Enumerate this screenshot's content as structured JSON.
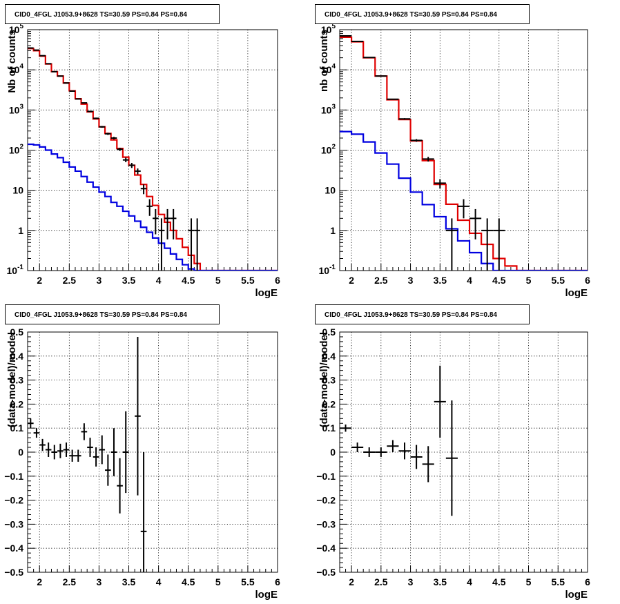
{
  "chart_data": [
    {
      "type": "histogram",
      "panel": "top-left",
      "title": "CID0_4FGL J1053.9+8628 TS=30.59 PS=0.84 PS=0.84",
      "xlabel": "logE",
      "ylabel": "Nb of counts",
      "yscale": "log",
      "xlim": [
        1.8,
        6.0
      ],
      "ylim": [
        0.1,
        100000
      ],
      "grid": true,
      "xticks": [
        "2",
        "2.5",
        "3",
        "3.5",
        "4",
        "4.5",
        "5",
        "5.5",
        "6"
      ],
      "yticks": [
        "10^-1",
        "1",
        "10",
        "10^2",
        "10^3",
        "10^4",
        "10^5"
      ],
      "series": [
        {
          "style": "step",
          "color": "#e00000",
          "bin_edges": [
            1.8,
            1.9,
            2.0,
            2.1,
            2.2,
            2.3,
            2.4,
            2.5,
            2.6,
            2.7,
            2.8,
            2.9,
            3.0,
            3.1,
            3.2,
            3.3,
            3.4,
            3.5,
            3.6,
            3.7,
            3.8,
            3.9,
            4.0,
            4.1,
            4.2,
            4.3,
            4.4,
            4.5,
            4.6,
            4.7,
            4.8,
            4.9,
            5.0,
            5.1,
            5.2,
            5.3,
            5.4,
            5.5,
            5.6,
            5.7,
            5.8,
            5.9,
            6.0
          ],
          "values": [
            34000,
            30000,
            22000,
            14000,
            9000,
            7000,
            4700,
            3000,
            1900,
            1400,
            900,
            600,
            380,
            260,
            180,
            110,
            67,
            42,
            24,
            14,
            7,
            4.2,
            2.5,
            1.6,
            1.0,
            0.62,
            0.38,
            0.24,
            0.15,
            0.1,
            0.1,
            0.1,
            0.1,
            0.1,
            0.1,
            0.1,
            0.1,
            0.1,
            0.1,
            0.1,
            0.1,
            0.1
          ]
        },
        {
          "style": "step",
          "color": "#0000e0",
          "bin_edges": [
            1.8,
            1.9,
            2.0,
            2.1,
            2.2,
            2.3,
            2.4,
            2.5,
            2.6,
            2.7,
            2.8,
            2.9,
            3.0,
            3.1,
            3.2,
            3.3,
            3.4,
            3.5,
            3.6,
            3.7,
            3.8,
            3.9,
            4.0,
            4.1,
            4.2,
            4.3,
            4.4,
            4.5,
            4.6,
            4.7,
            4.8,
            4.9,
            5.0,
            5.1,
            5.2,
            5.3,
            5.4,
            5.5,
            5.6,
            5.7,
            5.8,
            5.9,
            6.0
          ],
          "values": [
            140,
            135,
            120,
            100,
            80,
            65,
            50,
            38,
            30,
            22,
            16,
            12,
            9,
            7,
            5,
            4,
            3,
            2.3,
            1.7,
            1.2,
            0.9,
            0.65,
            0.48,
            0.36,
            0.26,
            0.19,
            0.14,
            0.11,
            0.1,
            0.1,
            0.1,
            0.1,
            0.1,
            0.1,
            0.1,
            0.1,
            0.1,
            0.1,
            0.1,
            0.1,
            0.1,
            0.1
          ]
        },
        {
          "style": "errorbar",
          "color": "#000000",
          "points": [
            {
              "x": 1.85,
              "y": 35000,
              "xerr": 0.05,
              "ylo": 34800,
              "yhi": 35200
            },
            {
              "x": 1.95,
              "y": 31000,
              "xerr": 0.05,
              "ylo": 30800,
              "yhi": 31200
            },
            {
              "x": 2.05,
              "y": 22500,
              "xerr": 0.05,
              "ylo": 22300,
              "yhi": 22700
            },
            {
              "x": 2.15,
              "y": 14200,
              "xerr": 0.05,
              "ylo": 14100,
              "yhi": 14300
            },
            {
              "x": 2.25,
              "y": 9000,
              "xerr": 0.05,
              "ylo": 8900,
              "yhi": 9100
            },
            {
              "x": 2.35,
              "y": 7000,
              "xerr": 0.05,
              "ylo": 6920,
              "yhi": 7080
            },
            {
              "x": 2.45,
              "y": 4700,
              "xerr": 0.05,
              "ylo": 4630,
              "yhi": 4770
            },
            {
              "x": 2.55,
              "y": 2950,
              "xerr": 0.05,
              "ylo": 2900,
              "yhi": 3000
            },
            {
              "x": 2.65,
              "y": 1880,
              "xerr": 0.05,
              "ylo": 1840,
              "yhi": 1920
            },
            {
              "x": 2.75,
              "y": 1500,
              "xerr": 0.05,
              "ylo": 1460,
              "yhi": 1540
            },
            {
              "x": 2.85,
              "y": 920,
              "xerr": 0.05,
              "ylo": 890,
              "yhi": 950
            },
            {
              "x": 2.95,
              "y": 620,
              "xerr": 0.05,
              "ylo": 595,
              "yhi": 645
            },
            {
              "x": 3.05,
              "y": 380,
              "xerr": 0.05,
              "ylo": 361,
              "yhi": 399
            },
            {
              "x": 3.15,
              "y": 255,
              "xerr": 0.05,
              "ylo": 239,
              "yhi": 271
            },
            {
              "x": 3.25,
              "y": 200,
              "xerr": 0.05,
              "ylo": 186,
              "yhi": 214
            },
            {
              "x": 3.35,
              "y": 105,
              "xerr": 0.05,
              "ylo": 95,
              "yhi": 115
            },
            {
              "x": 3.45,
              "y": 57,
              "xerr": 0.05,
              "ylo": 50,
              "yhi": 65
            },
            {
              "x": 3.55,
              "y": 42,
              "xerr": 0.05,
              "ylo": 36,
              "yhi": 48
            },
            {
              "x": 3.65,
              "y": 30,
              "xerr": 0.05,
              "ylo": 25,
              "yhi": 35
            },
            {
              "x": 3.75,
              "y": 11,
              "xerr": 0.05,
              "ylo": 8,
              "yhi": 14
            },
            {
              "x": 3.85,
              "y": 4,
              "xerr": 0.05,
              "ylo": 2.3,
              "yhi": 6
            },
            {
              "x": 3.95,
              "y": 2,
              "xerr": 0.05,
              "ylo": 0.8,
              "yhi": 3.4
            },
            {
              "x": 4.05,
              "y": 1,
              "xerr": 0.05,
              "ylo": 0.1,
              "yhi": 2
            },
            {
              "x": 4.15,
              "y": 2,
              "xerr": 0.05,
              "ylo": 0.6,
              "yhi": 3.4
            },
            {
              "x": 4.25,
              "y": 2,
              "xerr": 0.05,
              "ylo": 0.6,
              "yhi": 3.4
            },
            {
              "x": 4.55,
              "y": 1,
              "xerr": 0.05,
              "ylo": 0.1,
              "yhi": 2
            },
            {
              "x": 4.65,
              "y": 1,
              "xerr": 0.05,
              "ylo": 0.1,
              "yhi": 2
            }
          ]
        }
      ]
    },
    {
      "type": "histogram",
      "panel": "top-right",
      "title": "CID0_4FGL J1053.9+8628 TS=30.59 PS=0.84 PS=0.84",
      "xlabel": "logE",
      "ylabel": "nb of counts",
      "yscale": "log",
      "xlim": [
        1.8,
        6.0
      ],
      "ylim": [
        0.1,
        100000
      ],
      "grid": true,
      "xticks": [
        "2",
        "2.5",
        "3",
        "3.5",
        "4",
        "4.5",
        "5",
        "5.5",
        "6"
      ],
      "yticks": [
        "10^-1",
        "1",
        "10",
        "10^2",
        "10^3",
        "10^4",
        "10^5"
      ],
      "series": [
        {
          "style": "step",
          "color": "#e00000",
          "bin_edges": [
            1.8,
            2.0,
            2.2,
            2.4,
            2.6,
            2.8,
            3.0,
            3.2,
            3.4,
            3.6,
            3.8,
            4.0,
            4.2,
            4.4,
            4.6,
            4.8,
            5.0,
            5.2,
            5.4,
            5.6,
            5.8,
            6.0
          ],
          "values": [
            65000,
            50000,
            20000,
            7000,
            1800,
            580,
            170,
            55,
            14,
            4.5,
            1.8,
            0.85,
            0.45,
            0.2,
            0.13,
            0.1,
            0.1,
            0.1,
            0.1,
            0.1,
            0.1
          ]
        },
        {
          "style": "step",
          "color": "#0000e0",
          "bin_edges": [
            1.8,
            2.0,
            2.2,
            2.4,
            2.6,
            2.8,
            3.0,
            3.2,
            3.4,
            3.6,
            3.8,
            4.0,
            4.2,
            4.4,
            4.6,
            4.8,
            5.0,
            5.2,
            5.4,
            5.6,
            5.8,
            6.0
          ],
          "values": [
            290,
            250,
            160,
            85,
            45,
            20,
            9,
            4.4,
            2.2,
            1.1,
            0.55,
            0.28,
            0.15,
            0.1,
            0.1,
            0.1,
            0.1,
            0.1,
            0.1,
            0.1,
            0.1
          ]
        },
        {
          "style": "errorbar",
          "color": "#000000",
          "points": [
            {
              "x": 1.9,
              "y": 70000,
              "xerr": 0.1,
              "ylo": 69700,
              "yhi": 70300
            },
            {
              "x": 2.1,
              "y": 51000,
              "xerr": 0.1,
              "ylo": 50800,
              "yhi": 51200
            },
            {
              "x": 2.3,
              "y": 20300,
              "xerr": 0.1,
              "ylo": 20150,
              "yhi": 20450
            },
            {
              "x": 2.5,
              "y": 7000,
              "xerr": 0.1,
              "ylo": 6920,
              "yhi": 7080
            },
            {
              "x": 2.7,
              "y": 1850,
              "xerr": 0.1,
              "ylo": 1810,
              "yhi": 1890
            },
            {
              "x": 2.9,
              "y": 600,
              "xerr": 0.1,
              "ylo": 575,
              "yhi": 625
            },
            {
              "x": 3.1,
              "y": 175,
              "xerr": 0.1,
              "ylo": 162,
              "yhi": 188
            },
            {
              "x": 3.3,
              "y": 60,
              "xerr": 0.1,
              "ylo": 52,
              "yhi": 68
            },
            {
              "x": 3.5,
              "y": 15,
              "xerr": 0.1,
              "ylo": 11,
              "yhi": 19
            },
            {
              "x": 3.7,
              "y": 1,
              "xerr": 0.1,
              "ylo": 0.1,
              "yhi": 2
            },
            {
              "x": 3.9,
              "y": 4,
              "xerr": 0.1,
              "ylo": 2,
              "yhi": 6
            },
            {
              "x": 4.1,
              "y": 2,
              "xerr": 0.1,
              "ylo": 0.6,
              "yhi": 3.4
            },
            {
              "x": 4.3,
              "y": 1,
              "xerr": 0.1,
              "ylo": 0.1,
              "yhi": 2
            },
            {
              "x": 4.5,
              "y": 1,
              "xerr": 0.1,
              "ylo": 0.1,
              "yhi": 2
            }
          ]
        }
      ]
    },
    {
      "type": "scatter",
      "panel": "bottom-left",
      "title": "CID0_4FGL J1053.9+8628 TS=30.59 PS=0.84 PS=0.84",
      "xlabel": "logE",
      "ylabel": "(data-model)/model",
      "yscale": "linear",
      "xlim": [
        1.8,
        6.0
      ],
      "ylim": [
        -0.5,
        0.5
      ],
      "grid": true,
      "xticks": [
        "2",
        "2.5",
        "3",
        "3.5",
        "4",
        "4.5",
        "5",
        "5.5",
        "6"
      ],
      "yticks": [
        "−0.5",
        "−0.4",
        "−0.3",
        "−0.2",
        "−0.1",
        "0",
        "0.1",
        "0.2",
        "0.3",
        "0.4",
        "0.5"
      ],
      "series": [
        {
          "style": "errorbar",
          "color": "#000000",
          "points": [
            {
              "x": 1.85,
              "y": 0.12,
              "xerr": 0.05,
              "err": 0.02
            },
            {
              "x": 1.95,
              "y": 0.08,
              "xerr": 0.05,
              "err": 0.02
            },
            {
              "x": 2.05,
              "y": 0.03,
              "xerr": 0.05,
              "err": 0.025
            },
            {
              "x": 2.15,
              "y": 0.01,
              "xerr": 0.05,
              "err": 0.03
            },
            {
              "x": 2.25,
              "y": 0.0,
              "xerr": 0.05,
              "err": 0.03
            },
            {
              "x": 2.35,
              "y": 0.005,
              "xerr": 0.05,
              "err": 0.03
            },
            {
              "x": 2.45,
              "y": 0.01,
              "xerr": 0.05,
              "err": 0.03
            },
            {
              "x": 2.55,
              "y": -0.015,
              "xerr": 0.05,
              "err": 0.025
            },
            {
              "x": 2.65,
              "y": -0.015,
              "xerr": 0.05,
              "err": 0.025
            },
            {
              "x": 2.75,
              "y": 0.085,
              "xerr": 0.05,
              "err": 0.035
            },
            {
              "x": 2.85,
              "y": 0.02,
              "xerr": 0.05,
              "err": 0.04
            },
            {
              "x": 2.95,
              "y": -0.02,
              "xerr": 0.05,
              "err": 0.04
            },
            {
              "x": 3.05,
              "y": 0.01,
              "xerr": 0.05,
              "err": 0.06
            },
            {
              "x": 3.15,
              "y": -0.075,
              "xerr": 0.05,
              "err": 0.065
            },
            {
              "x": 3.25,
              "y": 0.0,
              "xerr": 0.05,
              "err": 0.1
            },
            {
              "x": 3.35,
              "y": -0.14,
              "xerr": 0.05,
              "err": 0.115
            },
            {
              "x": 3.45,
              "y": 0.0,
              "xerr": 0.05,
              "err": 0.17
            },
            {
              "x": 3.65,
              "y": 0.15,
              "xerr": 0.05,
              "err": 0.33
            },
            {
              "x": 3.75,
              "y": -0.33,
              "xerr": 0.05,
              "err": 0.33
            }
          ]
        }
      ]
    },
    {
      "type": "scatter",
      "panel": "bottom-right",
      "title": "CID0_4FGL J1053.9+8628 TS=30.59 PS=0.84 PS=0.84",
      "xlabel": "logE",
      "ylabel": "(data-model)/model",
      "yscale": "linear",
      "xlim": [
        1.8,
        6.0
      ],
      "ylim": [
        -0.5,
        0.5
      ],
      "grid": true,
      "xticks": [
        "2",
        "2.5",
        "3",
        "3.5",
        "4",
        "4.5",
        "5",
        "5.5",
        "6"
      ],
      "yticks": [
        "−0.5",
        "−0.4",
        "−0.3",
        "−0.2",
        "−0.1",
        "0",
        "0.1",
        "0.2",
        "0.3",
        "0.4",
        "0.5"
      ],
      "series": [
        {
          "style": "errorbar",
          "color": "#000000",
          "points": [
            {
              "x": 1.9,
              "y": 0.1,
              "xerr": 0.1,
              "err": 0.015
            },
            {
              "x": 2.1,
              "y": 0.02,
              "xerr": 0.1,
              "err": 0.02
            },
            {
              "x": 2.3,
              "y": 0.0,
              "xerr": 0.1,
              "err": 0.02
            },
            {
              "x": 2.5,
              "y": 0.0,
              "xerr": 0.1,
              "err": 0.02
            },
            {
              "x": 2.7,
              "y": 0.025,
              "xerr": 0.1,
              "err": 0.025
            },
            {
              "x": 2.9,
              "y": 0.005,
              "xerr": 0.1,
              "err": 0.035
            },
            {
              "x": 3.1,
              "y": -0.02,
              "xerr": 0.1,
              "err": 0.05
            },
            {
              "x": 3.3,
              "y": -0.05,
              "xerr": 0.1,
              "err": 0.075
            },
            {
              "x": 3.5,
              "y": 0.21,
              "xerr": 0.1,
              "err": 0.15
            },
            {
              "x": 3.7,
              "y": -0.025,
              "xerr": 0.1,
              "err": 0.24
            }
          ]
        }
      ]
    }
  ]
}
